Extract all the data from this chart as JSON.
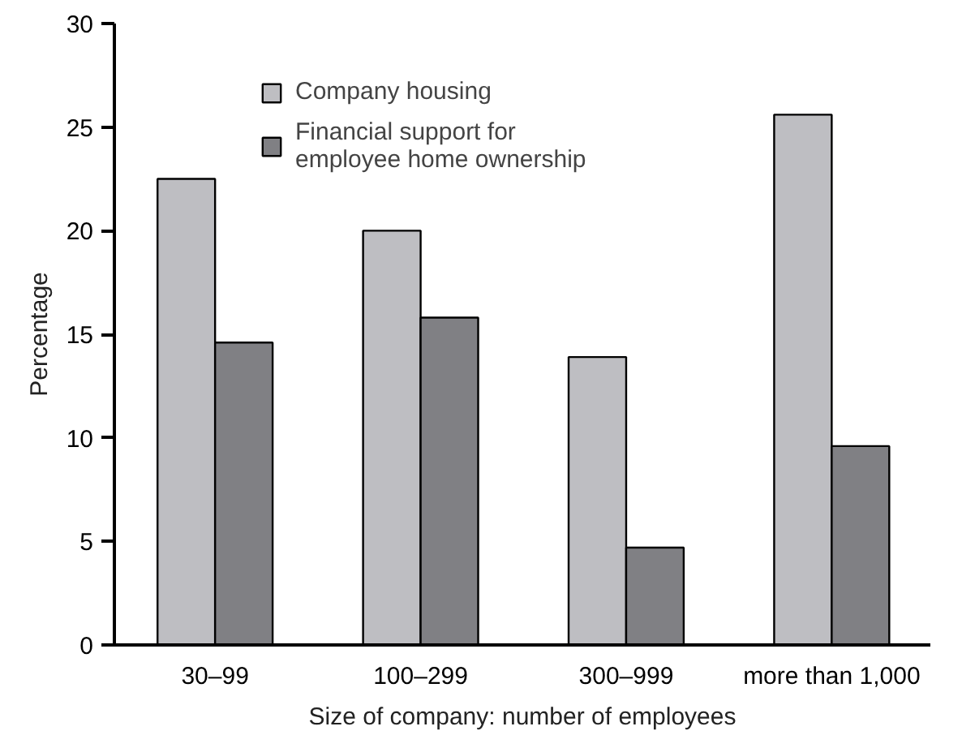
{
  "chart_data": {
    "type": "bar",
    "xlabel": "Size of company: number of employees",
    "ylabel": "Percentage",
    "categories": [
      "30–99",
      "100–299",
      "300–999",
      "more than 1,000"
    ],
    "series": [
      {
        "name": "Company housing",
        "color": "#bebec2",
        "values": [
          22.5,
          20.0,
          13.9,
          25.6
        ]
      },
      {
        "name": "Financial support for\nemployee home ownership",
        "color": "#808084",
        "values": [
          14.6,
          15.8,
          4.7,
          9.6
        ]
      }
    ],
    "ylim": [
      0,
      30
    ],
    "yticks": [
      0,
      5,
      10,
      15,
      20,
      25,
      30
    ],
    "grid": false,
    "legend": "top left"
  }
}
